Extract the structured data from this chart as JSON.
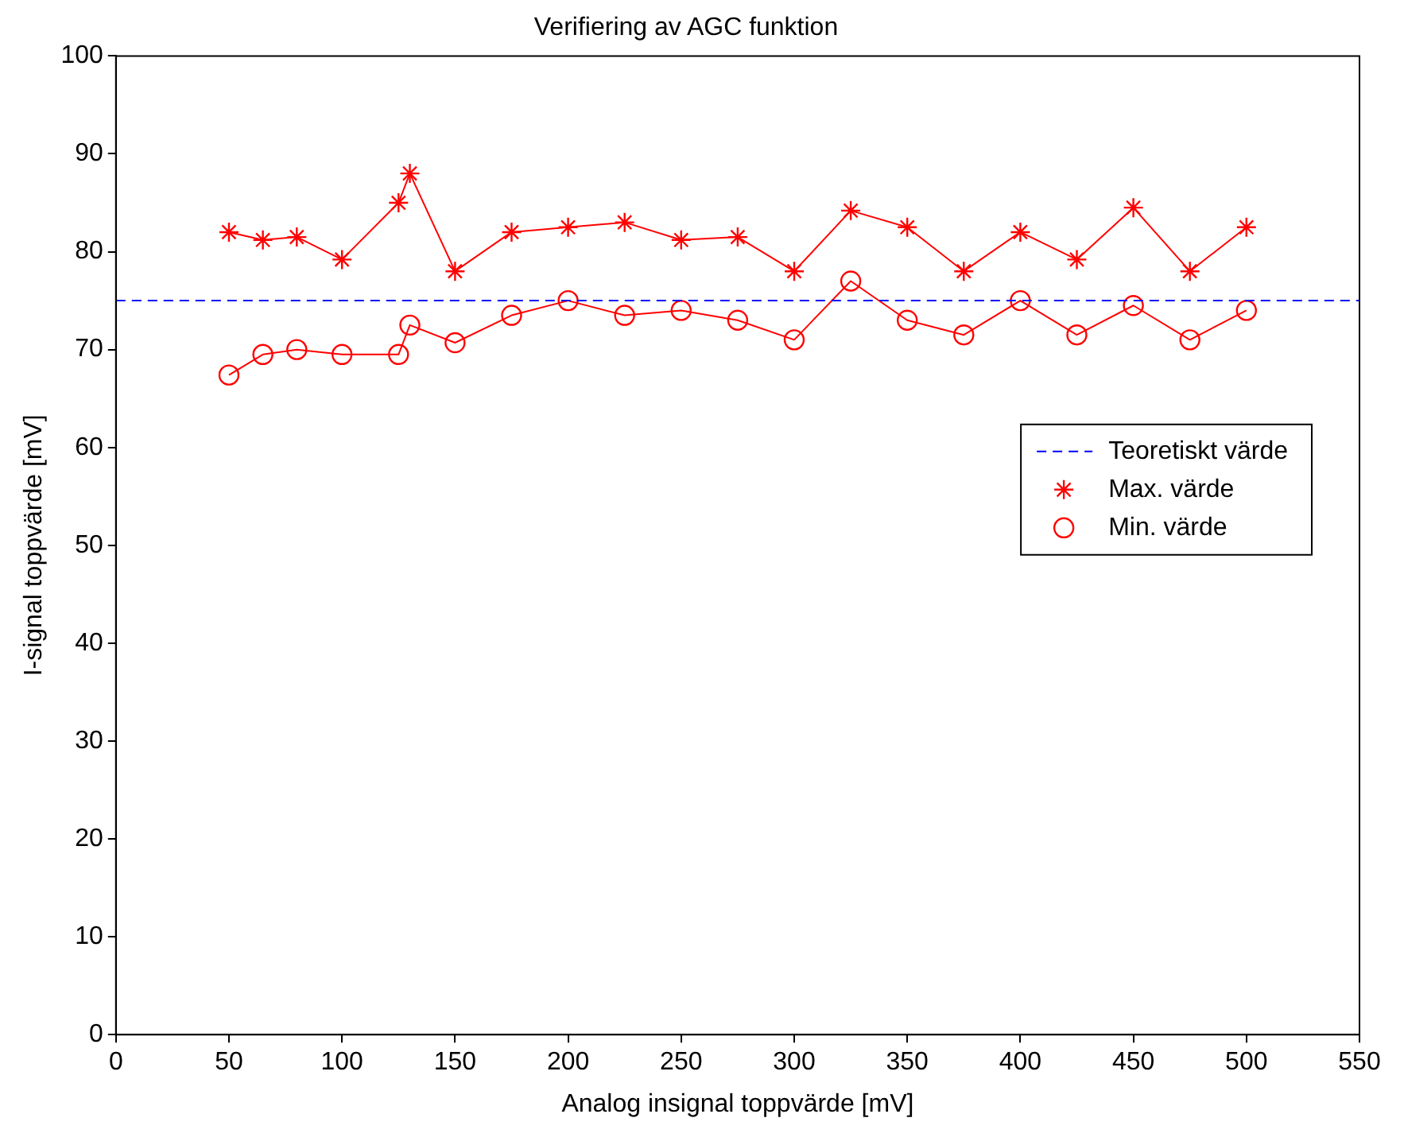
{
  "chart_data": {
    "type": "line",
    "title": "Verifiering av AGC funktion",
    "xlabel": "Analog insignal toppvärde [mV]",
    "ylabel": "I-signal toppvärde [mV]",
    "xlim": [
      0,
      550
    ],
    "xticks": [
      0,
      50,
      100,
      150,
      200,
      250,
      300,
      350,
      400,
      450,
      500,
      550
    ],
    "ylim": [
      0,
      100
    ],
    "yticks": [
      0,
      10,
      20,
      30,
      40,
      50,
      60,
      70,
      80,
      90,
      100
    ],
    "grid": false,
    "legend": "right",
    "x": [
      50,
      65,
      80,
      100,
      125,
      130,
      150,
      175,
      200,
      225,
      250,
      275,
      300,
      325,
      350,
      375,
      400,
      425,
      450,
      475,
      500
    ],
    "series": [
      {
        "name": "Teoretiskt värde",
        "color": "#0000ff",
        "x": [
          0,
          550
        ],
        "values": [
          75,
          75
        ],
        "line_style": "dashed",
        "marker": "none"
      },
      {
        "name": "Max. värde",
        "color": "#ff0000",
        "marker": "cross",
        "line_style": "solid",
        "values": [
          82,
          81.2,
          81.5,
          79.2,
          85,
          88,
          78,
          82,
          82.5,
          83,
          81.2,
          81.5,
          78,
          84.2,
          82.5,
          78,
          82,
          79.2,
          84.5,
          78,
          82.5
        ]
      },
      {
        "name": "Min. värde",
        "color": "#ff0000",
        "marker": "circle",
        "line_style": "solid",
        "values": [
          67.4,
          69.5,
          70,
          69.5,
          69.5,
          72.5,
          70.7,
          73.5,
          75,
          73.5,
          74,
          73,
          71,
          77,
          73,
          71.5,
          75,
          71.5,
          74.5,
          71,
          74
        ]
      }
    ]
  }
}
